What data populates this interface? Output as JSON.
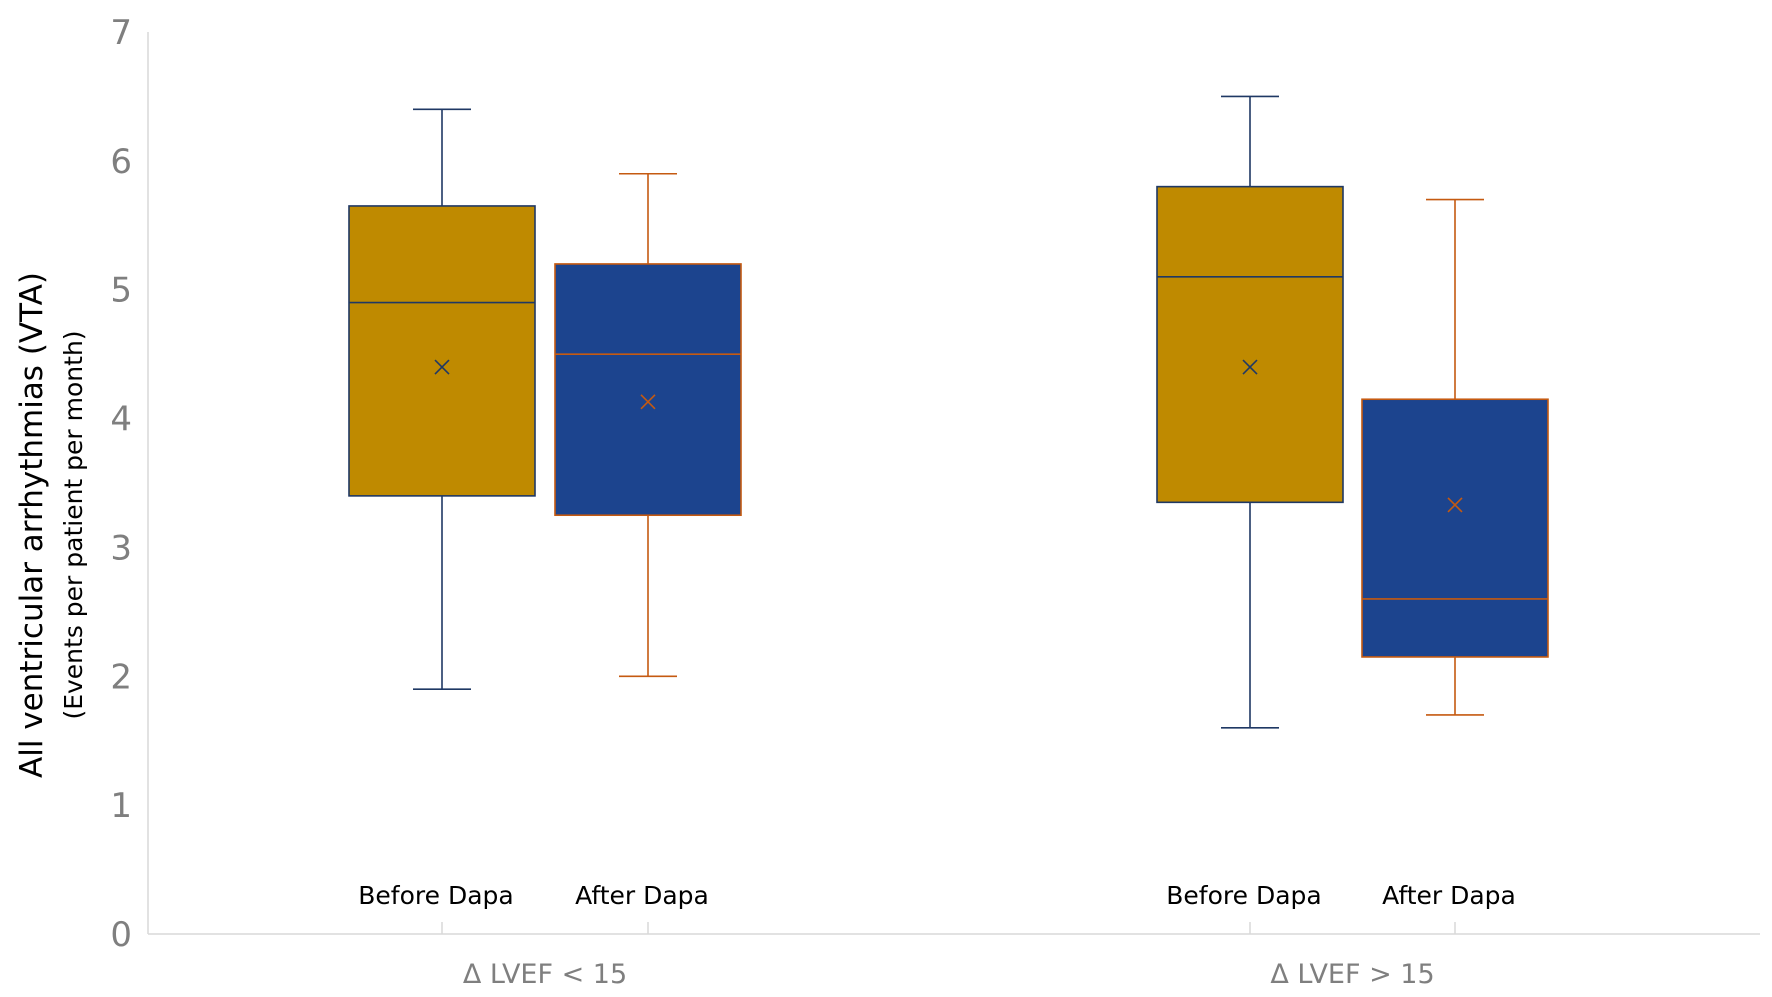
{
  "chart_data": {
    "type": "box",
    "title": "",
    "ylabel": "All ventricular arrhythmias (VTA)",
    "ylabel_sub": "(Events per patient per month)",
    "ylim": [
      0,
      7
    ],
    "yticks": [
      0,
      1,
      2,
      3,
      4,
      5,
      6,
      7
    ],
    "groups": [
      {
        "label": "Δ LVEF < 15",
        "boxes": [
          {
            "label": "Before Dapa",
            "min": 1.9,
            "q1": 3.4,
            "median": 4.9,
            "q3": 5.65,
            "max": 6.4,
            "mean": 4.4,
            "color": "#BF8A00",
            "line_color": "#1F3864"
          },
          {
            "label": "After Dapa",
            "min": 2.0,
            "q1": 3.25,
            "median": 4.5,
            "q3": 5.2,
            "max": 5.9,
            "mean": 4.13,
            "color": "#1C448E",
            "line_color": "#C55A11"
          }
        ]
      },
      {
        "label": "Δ LVEF > 15",
        "boxes": [
          {
            "label": "Before Dapa",
            "min": 1.6,
            "q1": 3.35,
            "median": 5.1,
            "q3": 5.8,
            "max": 6.5,
            "mean": 4.4,
            "color": "#BF8A00",
            "line_color": "#1F3864"
          },
          {
            "label": "After Dapa",
            "min": 1.7,
            "q1": 2.15,
            "median": 2.6,
            "q3": 4.15,
            "max": 5.7,
            "mean": 3.33,
            "color": "#1C448E",
            "line_color": "#C55A11"
          }
        ]
      }
    ]
  }
}
